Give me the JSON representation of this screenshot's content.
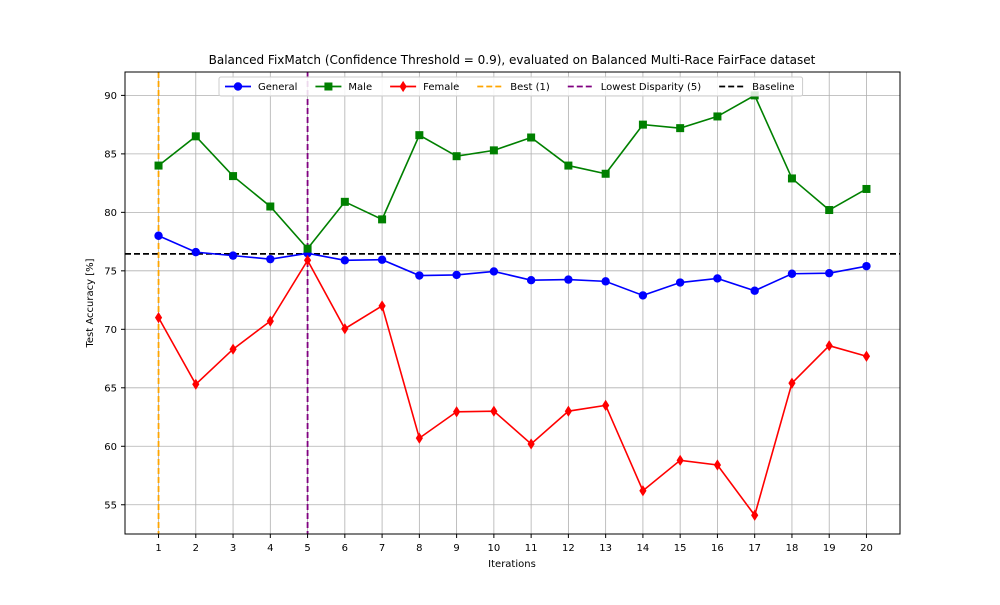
{
  "chart_data": {
    "type": "line",
    "title": "Balanced FixMatch (Confidence Threshold = 0.9), evaluated on Balanced Multi-Race FairFace dataset",
    "xlabel": "Iterations",
    "ylabel": "Test Accuracy [%]",
    "x": [
      1,
      2,
      3,
      4,
      5,
      6,
      7,
      8,
      9,
      10,
      11,
      12,
      13,
      14,
      15,
      16,
      17,
      18,
      19,
      20
    ],
    "xlim": [
      0.1,
      20.9
    ],
    "ylim": [
      52.5,
      92.0
    ],
    "yticks": [
      55,
      60,
      65,
      70,
      75,
      80,
      85,
      90
    ],
    "grid": true,
    "legend_position": "top-center",
    "series": [
      {
        "name": "General",
        "color": "#0000ff",
        "marker": "circle",
        "values": [
          78.0,
          76.6,
          76.3,
          76.0,
          76.5,
          75.9,
          75.95,
          74.6,
          74.65,
          74.95,
          74.2,
          74.25,
          74.1,
          72.9,
          74.0,
          74.35,
          73.3,
          74.75,
          74.8,
          75.4
        ]
      },
      {
        "name": "Male",
        "color": "#008000",
        "marker": "square",
        "values": [
          84.0,
          86.5,
          83.1,
          80.5,
          76.9,
          80.9,
          79.4,
          86.6,
          84.8,
          85.3,
          86.4,
          84.0,
          83.3,
          87.5,
          87.2,
          88.2,
          90.0,
          82.9,
          80.2,
          82.0
        ]
      },
      {
        "name": "Female",
        "color": "#ff0000",
        "marker": "diamond",
        "values": [
          71.0,
          65.3,
          68.3,
          70.7,
          75.9,
          70.05,
          72.0,
          60.7,
          62.95,
          63.0,
          60.2,
          63.0,
          63.5,
          56.2,
          58.8,
          58.4,
          54.1,
          65.4,
          68.6,
          67.7
        ]
      }
    ],
    "vlines": [
      {
        "name": "Best (1)",
        "x": 1,
        "color": "#ffa500",
        "style": "dashed"
      },
      {
        "name": "Lowest Disparity (5)",
        "x": 5,
        "color": "#800080",
        "style": "dashed"
      }
    ],
    "hlines": [
      {
        "name": "Baseline",
        "y": 76.45,
        "color": "#000000",
        "style": "dashed"
      }
    ]
  }
}
